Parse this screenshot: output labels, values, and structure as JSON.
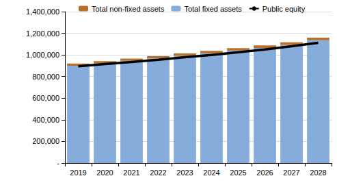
{
  "chart_data": {
    "type": "bar",
    "categories": [
      "2019",
      "2020",
      "2021",
      "2022",
      "2023",
      "2024",
      "2025",
      "2026",
      "2027",
      "2028"
    ],
    "series": [
      {
        "name": "Total non-fixed assets",
        "type": "bar",
        "color": "#b8702f",
        "values": [
          20000,
          20000,
          21000,
          21000,
          22000,
          22000,
          23000,
          23000,
          24000,
          24000
        ]
      },
      {
        "name": "Total fixed assets",
        "type": "bar",
        "color": "#86acdc",
        "values": [
          900000,
          922000,
          945000,
          968000,
          991000,
          1015000,
          1040000,
          1065000,
          1092000,
          1135000
        ]
      },
      {
        "name": "Public equity",
        "type": "line",
        "color": "#000000",
        "values": [
          895000,
          915000,
          935000,
          955000,
          978000,
          1000000,
          1025000,
          1050000,
          1080000,
          1112000
        ]
      }
    ],
    "stacked": true,
    "ylim": [
      0,
      1400000
    ],
    "yticks": [
      {
        "value": 0,
        "label": "-"
      },
      {
        "value": 200000,
        "label": "200,000"
      },
      {
        "value": 400000,
        "label": "400,000"
      },
      {
        "value": 600000,
        "label": "600,000"
      },
      {
        "value": 800000,
        "label": "800,000"
      },
      {
        "value": 1000000,
        "label": "1,000,000"
      },
      {
        "value": 1200000,
        "label": "1,200,000"
      },
      {
        "value": 1400000,
        "label": "1,400,000"
      }
    ],
    "grid": true,
    "legend": "top"
  }
}
